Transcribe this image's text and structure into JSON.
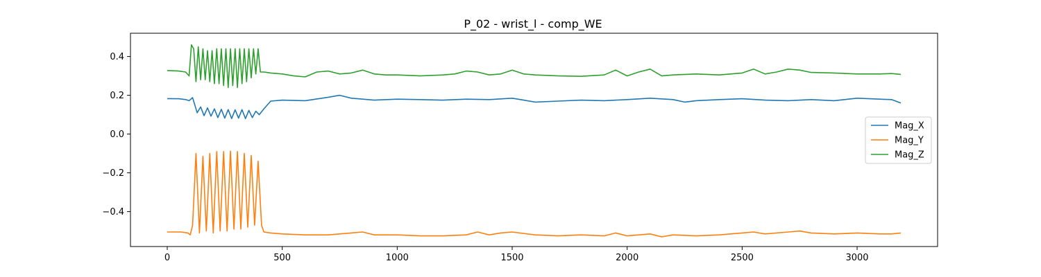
{
  "chart_data": {
    "type": "line",
    "title": "P_02 - wrist_l - comp_WE",
    "xlabel": "",
    "ylabel": "",
    "xlim": [
      -160,
      3350
    ],
    "ylim": [
      -0.58,
      0.52
    ],
    "xticks": [
      0,
      500,
      1000,
      1500,
      2000,
      2500,
      3000
    ],
    "yticks": [
      -0.4,
      -0.2,
      0.0,
      0.2,
      0.4
    ],
    "xtick_labels": [
      "0",
      "500",
      "1000",
      "1500",
      "2000",
      "2500",
      "3000"
    ],
    "ytick_labels": [
      "−0.4",
      "−0.2",
      "0.0",
      "0.2",
      "0.4"
    ],
    "grid": false,
    "legend_position": "center-right",
    "series": [
      {
        "name": "Mag_X",
        "color": "#1f77b4",
        "x": [
          0,
          50,
          80,
          95,
          110,
          130,
          145,
          160,
          175,
          190,
          205,
          220,
          235,
          250,
          265,
          280,
          295,
          310,
          325,
          340,
          355,
          370,
          385,
          400,
          420,
          450,
          500,
          600,
          700,
          750,
          800,
          900,
          1000,
          1100,
          1200,
          1300,
          1400,
          1500,
          1550,
          1600,
          1700,
          1800,
          1900,
          2000,
          2100,
          2200,
          2250,
          2300,
          2400,
          2500,
          2600,
          2700,
          2800,
          2900,
          3000,
          3100,
          3150,
          3190
        ],
        "y": [
          0.183,
          0.182,
          0.178,
          0.172,
          0.188,
          0.11,
          0.14,
          0.095,
          0.135,
          0.092,
          0.13,
          0.085,
          0.128,
          0.082,
          0.126,
          0.08,
          0.125,
          0.082,
          0.126,
          0.08,
          0.122,
          0.085,
          0.118,
          0.1,
          0.13,
          0.17,
          0.175,
          0.172,
          0.19,
          0.2,
          0.185,
          0.175,
          0.18,
          0.178,
          0.175,
          0.18,
          0.178,
          0.185,
          0.175,
          0.165,
          0.17,
          0.175,
          0.172,
          0.178,
          0.185,
          0.178,
          0.165,
          0.172,
          0.178,
          0.182,
          0.175,
          0.172,
          0.178,
          0.172,
          0.185,
          0.18,
          0.178,
          0.16
        ]
      },
      {
        "name": "Mag_Y",
        "color": "#ff7f0e",
        "x": [
          0,
          60,
          90,
          100,
          110,
          125,
          140,
          155,
          170,
          185,
          200,
          215,
          230,
          245,
          260,
          275,
          290,
          305,
          320,
          335,
          350,
          365,
          380,
          395,
          410,
          420,
          450,
          500,
          600,
          700,
          750,
          850,
          900,
          1000,
          1100,
          1200,
          1300,
          1350,
          1400,
          1450,
          1500,
          1600,
          1700,
          1800,
          1900,
          1950,
          2000,
          2100,
          2150,
          2200,
          2300,
          2400,
          2500,
          2550,
          2600,
          2700,
          2750,
          2800,
          2900,
          3000,
          3100,
          3150,
          3190
        ],
        "y": [
          -0.505,
          -0.505,
          -0.51,
          -0.52,
          -0.47,
          -0.1,
          -0.51,
          -0.115,
          -0.5,
          -0.1,
          -0.51,
          -0.09,
          -0.5,
          -0.09,
          -0.5,
          -0.088,
          -0.49,
          -0.09,
          -0.49,
          -0.1,
          -0.48,
          -0.11,
          -0.47,
          -0.14,
          -0.47,
          -0.505,
          -0.51,
          -0.515,
          -0.52,
          -0.52,
          -0.515,
          -0.505,
          -0.52,
          -0.52,
          -0.525,
          -0.525,
          -0.52,
          -0.505,
          -0.52,
          -0.51,
          -0.505,
          -0.52,
          -0.525,
          -0.52,
          -0.525,
          -0.51,
          -0.525,
          -0.515,
          -0.53,
          -0.52,
          -0.525,
          -0.52,
          -0.51,
          -0.505,
          -0.515,
          -0.505,
          -0.5,
          -0.51,
          -0.515,
          -0.51,
          -0.515,
          -0.515,
          -0.51
        ]
      },
      {
        "name": "Mag_Z",
        "color": "#2ca02c",
        "x": [
          0,
          50,
          80,
          95,
          105,
          115,
          125,
          135,
          145,
          155,
          165,
          175,
          185,
          195,
          205,
          215,
          225,
          235,
          245,
          255,
          265,
          275,
          285,
          295,
          305,
          315,
          325,
          335,
          345,
          355,
          365,
          375,
          385,
          395,
          405,
          420,
          450,
          500,
          550,
          600,
          650,
          700,
          750,
          800,
          850,
          900,
          950,
          1000,
          1100,
          1200,
          1250,
          1300,
          1350,
          1400,
          1450,
          1500,
          1550,
          1600,
          1700,
          1800,
          1900,
          1950,
          2000,
          2050,
          2100,
          2150,
          2200,
          2300,
          2400,
          2500,
          2550,
          2600,
          2650,
          2700,
          2750,
          2800,
          2900,
          3000,
          3100,
          3150,
          3190
        ],
        "y": [
          0.328,
          0.325,
          0.32,
          0.3,
          0.46,
          0.44,
          0.27,
          0.45,
          0.28,
          0.44,
          0.28,
          0.43,
          0.27,
          0.43,
          0.26,
          0.44,
          0.26,
          0.44,
          0.25,
          0.44,
          0.24,
          0.44,
          0.25,
          0.44,
          0.24,
          0.44,
          0.26,
          0.44,
          0.27,
          0.44,
          0.29,
          0.44,
          0.31,
          0.44,
          0.32,
          0.32,
          0.315,
          0.31,
          0.3,
          0.295,
          0.32,
          0.325,
          0.31,
          0.315,
          0.33,
          0.31,
          0.305,
          0.305,
          0.3,
          0.305,
          0.31,
          0.325,
          0.32,
          0.305,
          0.31,
          0.33,
          0.31,
          0.305,
          0.3,
          0.298,
          0.305,
          0.33,
          0.3,
          0.32,
          0.335,
          0.3,
          0.305,
          0.31,
          0.305,
          0.315,
          0.335,
          0.31,
          0.32,
          0.335,
          0.33,
          0.318,
          0.315,
          0.31,
          0.31,
          0.312,
          0.308
        ]
      }
    ]
  }
}
